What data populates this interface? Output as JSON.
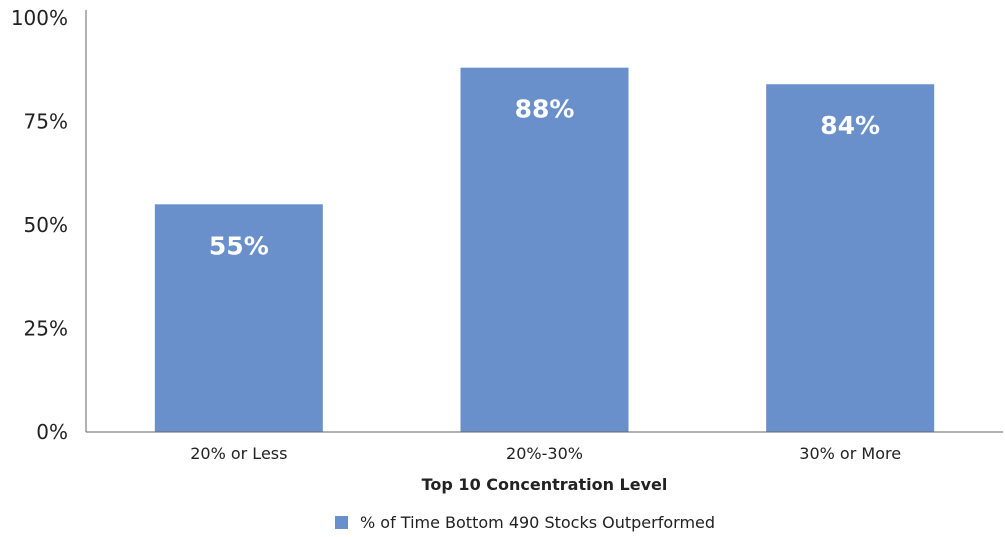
{
  "chart_data": {
    "type": "bar",
    "categories": [
      "20% or Less",
      "20%-30%",
      "30% or More"
    ],
    "series": [
      {
        "name": "% of Time Bottom 490 Stocks Outperformed",
        "values": [
          55,
          88,
          84
        ],
        "labels": [
          "55%",
          "88%",
          "84%"
        ],
        "color": "#6990cb"
      }
    ],
    "title": "",
    "xlabel": "Top 10 Concentration Level",
    "ylabel": "",
    "ylim": [
      0,
      100
    ],
    "yticks": [
      0,
      25,
      50,
      75,
      100
    ],
    "ytick_labels": [
      "0%",
      "25%",
      "50%",
      "75%",
      "100%"
    ],
    "grid": false,
    "legend_position": "bottom"
  }
}
